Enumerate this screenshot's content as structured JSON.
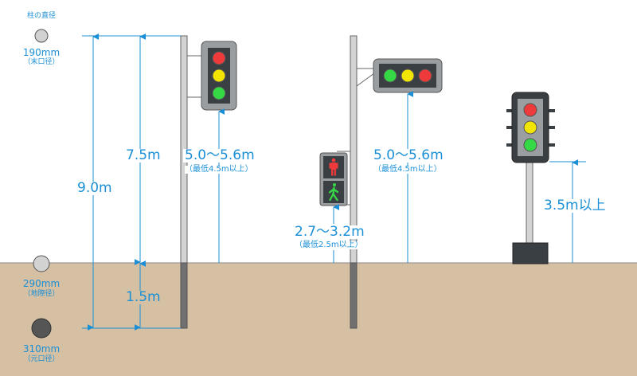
{
  "legend": {
    "title": "柱の直径",
    "top_value": "190mm",
    "top_note": "（末口径）",
    "mid_value": "290mm",
    "mid_note": "（地際径）",
    "bottom_value": "310mm",
    "bottom_note": "（元口径）"
  },
  "pole1": {
    "total_height": "9.0m",
    "upper_height": "7.5m",
    "buried_depth": "1.5m",
    "signal_height": "5.0～5.6m",
    "signal_note": "（最低4.5m以上）"
  },
  "pole2": {
    "signal_height": "5.0～5.6m",
    "signal_note": "（最低4.5m以上）",
    "ped_height": "2.7～3.2m",
    "ped_note": "（最低2.5m以上）"
  },
  "pole3": {
    "signal_height": "3.5m以上"
  },
  "colors": {
    "accent": "#1a8fd6",
    "ground": "#d5c0a3",
    "red": "#ee3a3a",
    "yellow": "#f2e600",
    "green": "#35d845",
    "housing": "#9b9ea1",
    "dark_housing": "#3a3f44"
  }
}
